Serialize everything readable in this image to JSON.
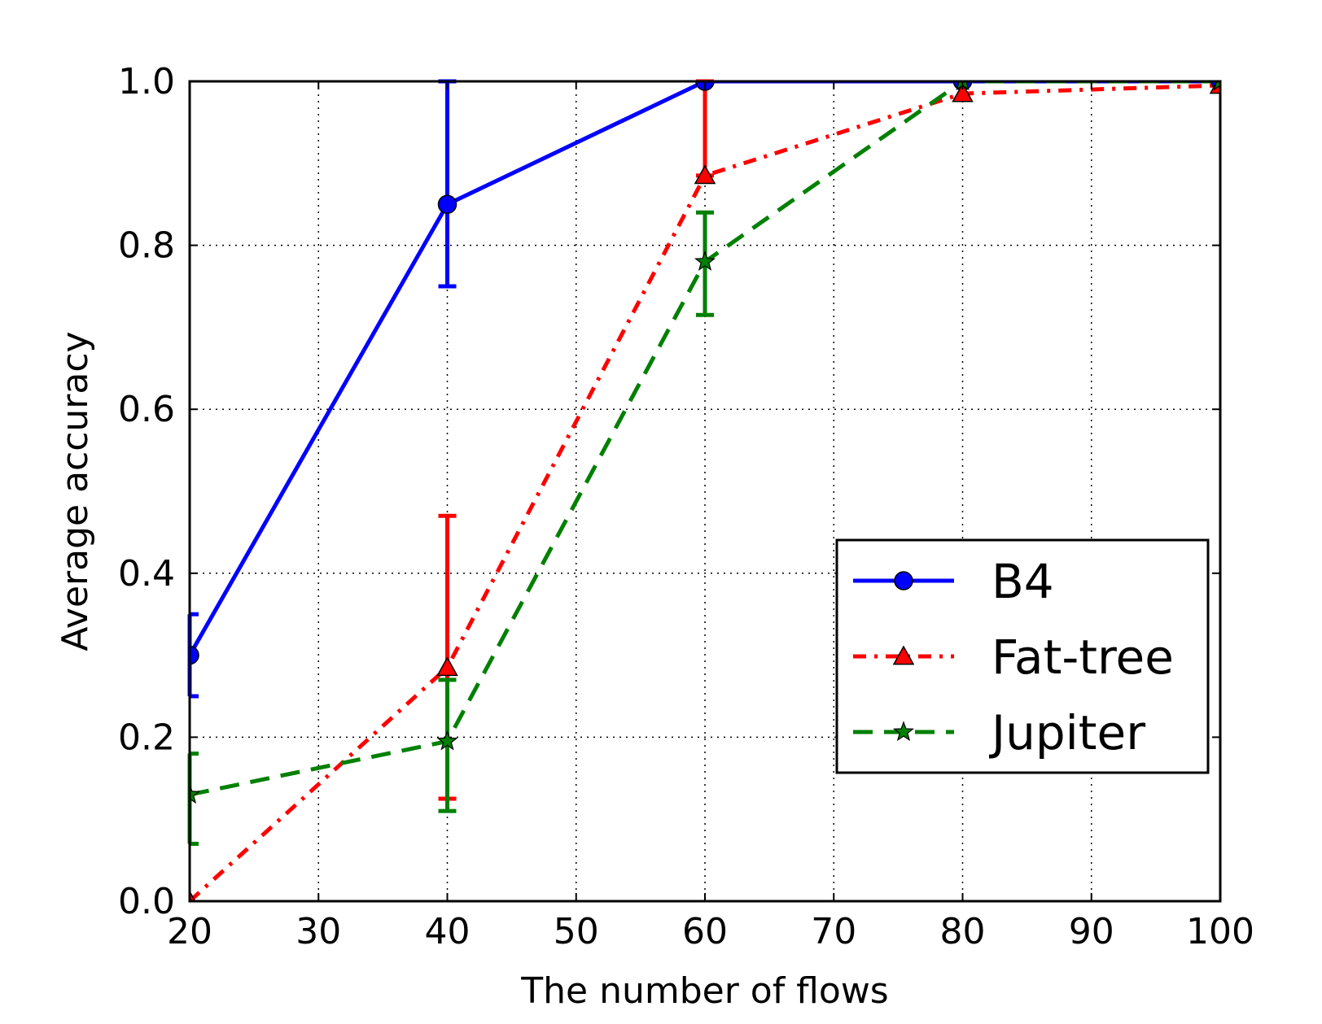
{
  "chart_data": {
    "type": "line",
    "title": "",
    "xlabel": "The number of flows",
    "ylabel": "Average accuracy",
    "xlim": [
      20,
      100
    ],
    "ylim": [
      0.0,
      1.0
    ],
    "x_ticks": [
      20,
      30,
      40,
      50,
      60,
      70,
      80,
      90,
      100
    ],
    "y_ticks": [
      0.0,
      0.2,
      0.4,
      0.6,
      0.8,
      1.0
    ],
    "x_tick_labels": [
      "20",
      "30",
      "40",
      "50",
      "60",
      "70",
      "80",
      "90",
      "100"
    ],
    "y_tick_labels": [
      "0.0",
      "0.2",
      "0.4",
      "0.6",
      "0.8",
      "1.0"
    ],
    "grid": true,
    "legend_position": "center-right",
    "x": [
      20,
      40,
      60,
      80,
      100
    ],
    "series": [
      {
        "name": "B4",
        "color": "#0000ff",
        "linestyle": "solid",
        "marker": "circle",
        "values": [
          0.3,
          0.85,
          1.0,
          1.0,
          1.0
        ],
        "err_lower": [
          0.25,
          0.75,
          1.0,
          1.0,
          1.0
        ],
        "err_upper": [
          0.35,
          1.0,
          1.0,
          1.0,
          1.0
        ]
      },
      {
        "name": "Fat-tree",
        "color": "#ff0000",
        "linestyle": "dashdot",
        "marker": "triangle",
        "values": [
          0.0,
          0.285,
          0.885,
          0.985,
          0.995
        ],
        "err_lower": [
          0.0,
          0.125,
          0.885,
          0.985,
          0.995
        ],
        "err_upper": [
          0.0,
          0.47,
          1.0,
          0.985,
          0.995
        ]
      },
      {
        "name": "Jupiter",
        "color": "#008000",
        "linestyle": "dashed",
        "marker": "star",
        "values": [
          0.13,
          0.195,
          0.78,
          1.0,
          1.0
        ],
        "err_lower": [
          0.07,
          0.11,
          0.715,
          1.0,
          1.0
        ],
        "err_upper": [
          0.18,
          0.27,
          0.84,
          1.0,
          1.0
        ]
      }
    ]
  }
}
